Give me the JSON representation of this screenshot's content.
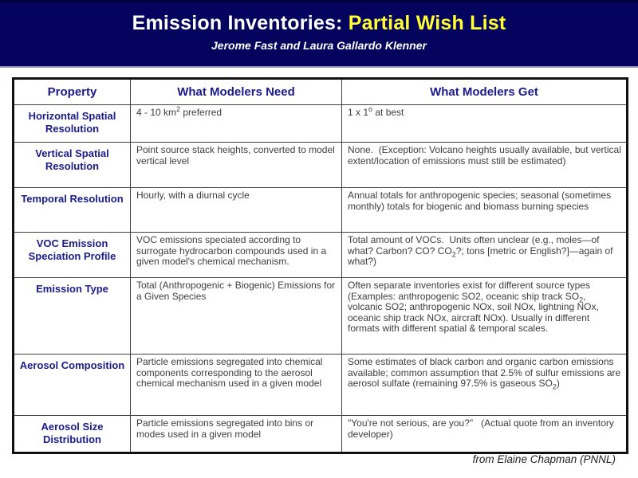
{
  "slide": {
    "title_prefix": "Emission Inventories: ",
    "title_highlight": "Partial Wish List",
    "subtitle": "Jerome Fast and Laura Gallardo Klenner",
    "credit": "from Elaine Chapman (PNNL)"
  },
  "colors": {
    "banner_bg": "#04045f",
    "banner_edge": "#8f8fbf",
    "title_color": "#ffffff",
    "title_highlight": "#ffff33",
    "heading_text": "#1a1a8c",
    "body_text": "#3d3d3d",
    "grid_line": "#404040",
    "table_border": "#111111",
    "credit_text": "#1f1f1f"
  },
  "table": {
    "headers": [
      "Property",
      "What Modelers Need",
      "What Modelers Get"
    ],
    "rows": [
      {
        "property": "Horizontal Spatial Resolution",
        "need": "4 - 10 km^2^ preferred",
        "get": "1 x 1^o^ at best"
      },
      {
        "property": "Vertical Spatial Resolution",
        "need": "Point source stack heights, converted to model vertical level",
        "get": "None.  (Exception: Volcano heights usually available, but vertical extent/location of emissions must still be estimated)"
      },
      {
        "property": "Temporal Resolution",
        "need": "Hourly, with a diurnal cycle",
        "get": "Annual totals for anthropogenic species; seasonal (sometimes monthly) totals for biogenic and biomass burning species"
      },
      {
        "property": "VOC Emission Speciation Profile",
        "need": "VOC emissions speciated according to surrogate hydrocarbon compounds used in a given model's chemical mechanism.",
        "get": "Total amount of VOCs.  Units often unclear (e.g., moles—of what? Carbon? CO? CO~2~?; tons [metric or English?]—again of what?)"
      },
      {
        "property": "Emission Type",
        "need": "Total (Anthropogenic + Biogenic) Emissions for a Given Species",
        "get": "Often separate inventories exist for different source types (Examples: anthropogenic SO2, oceanic ship track SO~2~, volcanic SO2; anthropogenic NOx, soil NOx, lightning NOx, oceanic ship track NOx, aircraft NOx). Usually in different formats with different spatial & temporal scales."
      },
      {
        "property": "Aerosol Composition",
        "need": "Particle emissions segregated into chemical components corresponding to the aerosol chemical mechanism used in a given model",
        "get": "Some estimates of black carbon and organic carbon emissions available; common assumption that 2.5% of sulfur emissions are aerosol sulfate (remaining 97.5% is gaseous SO~2~)"
      },
      {
        "property": "Aerosol Size Distribution",
        "need": "Particle emissions segregated into bins or modes used in a given model",
        "get": "\"You're not serious, are you?\"   (Actual quote from an inventory developer)"
      }
    ]
  }
}
